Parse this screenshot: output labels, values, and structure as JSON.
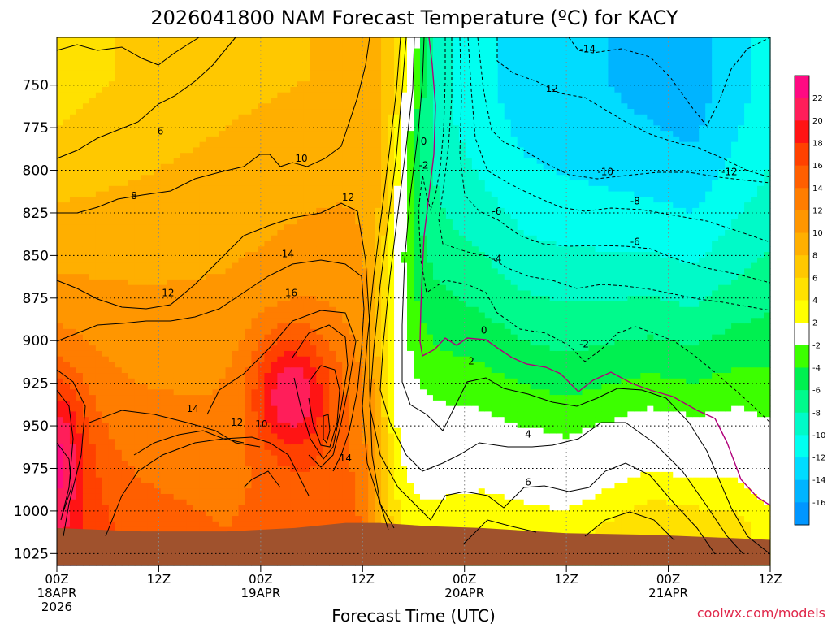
{
  "chart_data": {
    "type": "heatmap",
    "title": "2026041800 NAM Forecast Temperature (ºC) for KACY",
    "xlabel": "Forecast Time (UTC)",
    "ylabel": "",
    "credit": "coolwx.com/models",
    "x_ticks": [
      {
        "l1": "00Z",
        "l2": "18APR",
        "l3": "2026",
        "hour": 0
      },
      {
        "l1": "12Z",
        "l2": "",
        "l3": "",
        "hour": 12
      },
      {
        "l1": "00Z",
        "l2": "19APR",
        "l3": "",
        "hour": 24
      },
      {
        "l1": "12Z",
        "l2": "",
        "l3": "",
        "hour": 36
      },
      {
        "l1": "00Z",
        "l2": "20APR",
        "l3": "",
        "hour": 48
      },
      {
        "l1": "12Z",
        "l2": "",
        "l3": "",
        "hour": 60
      },
      {
        "l1": "00Z",
        "l2": "21APR",
        "l3": "",
        "hour": 72
      },
      {
        "l1": "12Z",
        "l2": "",
        "l3": "",
        "hour": 84
      }
    ],
    "xlim_hours": [
      0,
      84
    ],
    "y_ticks": [
      750,
      775,
      800,
      825,
      850,
      875,
      900,
      925,
      950,
      975,
      1000,
      1025
    ],
    "ylim_hpa": [
      722,
      1032
    ],
    "colorbar": {
      "labels": [
        "22",
        "20",
        "18",
        "16",
        "14",
        "12",
        "10",
        "8",
        "6",
        "4",
        "2",
        "-2",
        "-4",
        "-6",
        "-8",
        "-10",
        "-12",
        "-14",
        "-16"
      ],
      "bins": [
        {
          "lo": 22,
          "hi": 24,
          "color": "#ff0a82"
        },
        {
          "lo": 20,
          "hi": 22,
          "color": "#ff1e5a"
        },
        {
          "lo": 18,
          "hi": 20,
          "color": "#ff1414"
        },
        {
          "lo": 16,
          "hi": 18,
          "color": "#ff4100"
        },
        {
          "lo": 14,
          "hi": 16,
          "color": "#ff5f00"
        },
        {
          "lo": 12,
          "hi": 14,
          "color": "#ff7d00"
        },
        {
          "lo": 10,
          "hi": 12,
          "color": "#ff9600"
        },
        {
          "lo": 8,
          "hi": 10,
          "color": "#ffaf00"
        },
        {
          "lo": 6,
          "hi": 8,
          "color": "#ffc800"
        },
        {
          "lo": 4,
          "hi": 6,
          "color": "#ffe100"
        },
        {
          "lo": 2,
          "hi": 4,
          "color": "#ffff00"
        },
        {
          "lo": -2,
          "hi": 2,
          "color": "#ffffff"
        },
        {
          "lo": -4,
          "hi": -2,
          "color": "#3cff00"
        },
        {
          "lo": -6,
          "hi": -4,
          "color": "#00f050"
        },
        {
          "lo": -8,
          "hi": -6,
          "color": "#00fa8c"
        },
        {
          "lo": -10,
          "hi": -8,
          "color": "#00fac8"
        },
        {
          "lo": -12,
          "hi": -10,
          "color": "#00fff0"
        },
        {
          "lo": -14,
          "hi": -12,
          "color": "#00dcff"
        },
        {
          "lo": -16,
          "hi": -14,
          "color": "#00b4ff"
        },
        {
          "lo": -18,
          "hi": -16,
          "color": "#0096ff"
        }
      ]
    },
    "contour_labels": [
      {
        "text": "6",
        "hour": 12.2,
        "hpa": 777
      },
      {
        "text": "8",
        "hour": 9.1,
        "hpa": 815
      },
      {
        "text": "10",
        "hour": 28.8,
        "hpa": 793
      },
      {
        "text": "12",
        "hour": 34.3,
        "hpa": 816
      },
      {
        "text": "14",
        "hour": 27.2,
        "hpa": 849
      },
      {
        "text": "12",
        "hour": 13.1,
        "hpa": 872
      },
      {
        "text": "16",
        "hour": 27.6,
        "hpa": 872
      },
      {
        "text": "14",
        "hour": 16.0,
        "hpa": 940
      },
      {
        "text": "12",
        "hour": 21.2,
        "hpa": 948
      },
      {
        "text": "10",
        "hour": 24.1,
        "hpa": 949
      },
      {
        "text": "14",
        "hour": 34.0,
        "hpa": 969
      },
      {
        "text": "0",
        "hour": 43.2,
        "hpa": 783
      },
      {
        "text": "-2",
        "hour": 43.2,
        "hpa": 797
      },
      {
        "text": "-14",
        "hour": 62.5,
        "hpa": 729
      },
      {
        "text": "-12",
        "hour": 58.1,
        "hpa": 752
      },
      {
        "text": "-10",
        "hour": 64.6,
        "hpa": 801
      },
      {
        "text": "-12",
        "hour": 79.2,
        "hpa": 801
      },
      {
        "text": "-8",
        "hour": 68.1,
        "hpa": 818
      },
      {
        "text": "-6",
        "hour": 51.8,
        "hpa": 824
      },
      {
        "text": "-6",
        "hour": 68.1,
        "hpa": 842
      },
      {
        "text": "-4",
        "hour": 51.8,
        "hpa": 852
      },
      {
        "text": "0",
        "hour": 50.3,
        "hpa": 894
      },
      {
        "text": "-2",
        "hour": 62.1,
        "hpa": 902
      },
      {
        "text": "2",
        "hour": 48.8,
        "hpa": 912
      },
      {
        "text": "4",
        "hour": 55.5,
        "hpa": 955
      },
      {
        "text": "6",
        "hour": 55.5,
        "hpa": 983
      }
    ]
  }
}
